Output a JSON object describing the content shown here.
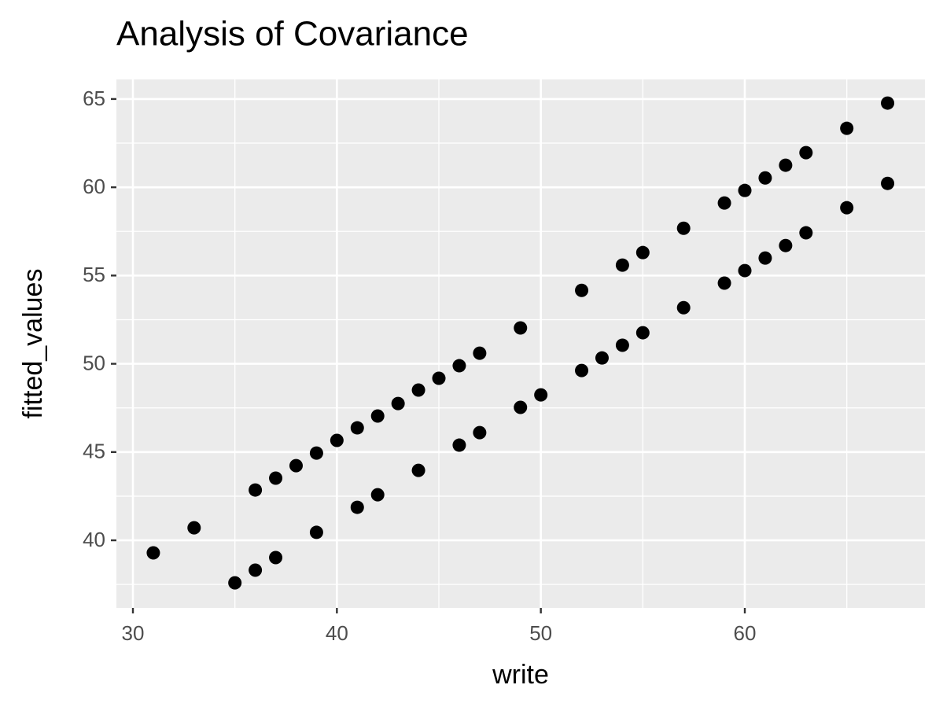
{
  "chart_data": {
    "type": "scatter",
    "title": "Analysis of Covariance",
    "x_label": "write",
    "y_label": "fitted_values",
    "x": [
      31,
      33,
      36,
      37,
      38,
      39,
      40,
      41,
      42,
      43,
      44,
      45,
      46,
      47,
      49,
      52,
      54,
      55,
      57,
      59,
      60,
      61,
      62,
      63,
      65,
      67,
      35,
      36,
      37,
      39,
      41,
      42,
      44,
      46,
      47,
      49,
      50,
      52,
      53,
      54,
      55,
      57,
      59,
      60,
      61,
      62,
      63,
      65,
      67
    ],
    "y": [
      39.29,
      40.71,
      42.85,
      43.52,
      44.23,
      44.94,
      45.66,
      46.37,
      47.04,
      47.75,
      48.51,
      49.18,
      49.89,
      50.6,
      52.03,
      54.16,
      55.59,
      56.3,
      57.68,
      59.11,
      59.82,
      60.53,
      61.25,
      61.96,
      63.34,
      64.77,
      37.59,
      38.31,
      39.02,
      40.45,
      41.87,
      42.58,
      43.96,
      45.39,
      46.1,
      47.53,
      48.24,
      49.62,
      50.33,
      51.05,
      51.76,
      53.18,
      54.57,
      55.28,
      55.99,
      56.7,
      57.42,
      58.84,
      60.22
    ],
    "color": "#000000",
    "xlim": [
      29.19,
      68.83
    ],
    "ylim": [
      36.17,
      66.11
    ],
    "xticks": [
      30,
      40,
      50,
      60
    ],
    "yticks": [
      40,
      45,
      50,
      55,
      60,
      65
    ],
    "x_minor_breaks": [
      35,
      45,
      55,
      65
    ],
    "y_minor_breaks": [
      37.5,
      42.5,
      47.5,
      52.5,
      57.5,
      62.5
    ],
    "grid": true
  }
}
